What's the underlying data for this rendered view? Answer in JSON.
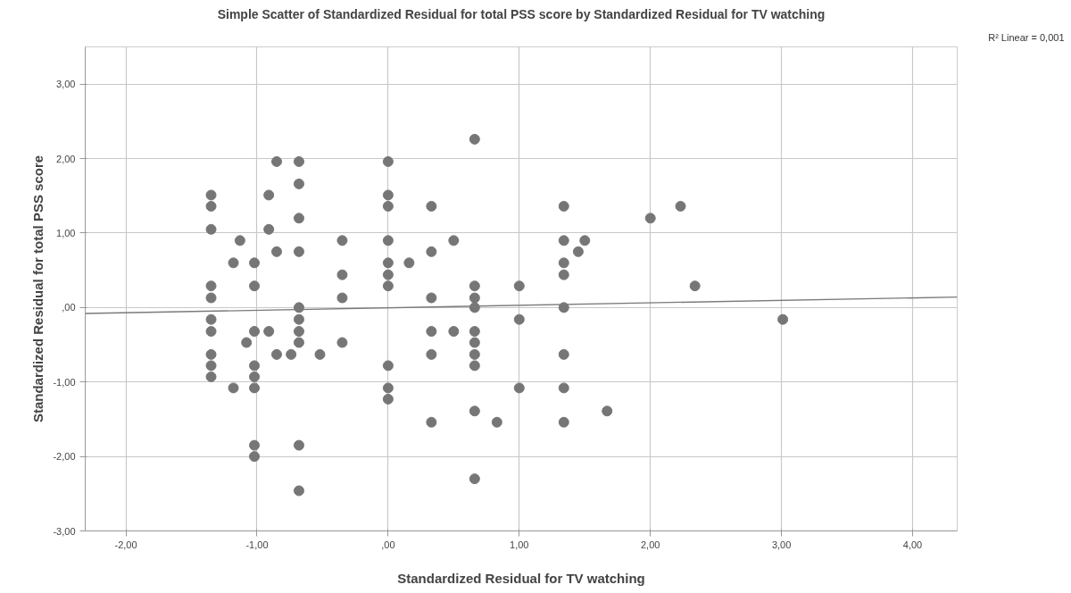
{
  "chart_data": {
    "type": "scatter",
    "title": "Simple Scatter of Standardized Residual for total PSS score by Standardized Residual for TV watching",
    "xlabel": "Standardized Residual for TV watching",
    "ylabel": "Standardized Residual for total PSS score",
    "annotations": [
      "R² Linear = 0,001"
    ],
    "xlim": [
      -2.31,
      4.34
    ],
    "ylim": [
      -3,
      3.5
    ],
    "xticks": [
      {
        "value": -2,
        "label": "-2,00"
      },
      {
        "value": -1,
        "label": "-1,00"
      },
      {
        "value": 0,
        "label": ",00"
      },
      {
        "value": 1,
        "label": "1,00"
      },
      {
        "value": 2,
        "label": "2,00"
      },
      {
        "value": 3,
        "label": "3,00"
      },
      {
        "value": 4,
        "label": "4,00"
      }
    ],
    "yticks": [
      {
        "value": -3,
        "label": "-3,00"
      },
      {
        "value": -2,
        "label": "-2,00"
      },
      {
        "value": -1,
        "label": "-1,00"
      },
      {
        "value": 0,
        "label": ",00"
      },
      {
        "value": 1,
        "label": "1,00"
      },
      {
        "value": 2,
        "label": "2,00"
      },
      {
        "value": 3,
        "label": "3,00"
      }
    ],
    "grid": true,
    "marker": "circle",
    "series": [
      {
        "color": "#767676",
        "x": [
          -1.35,
          -1.35,
          -1.35,
          -1.35,
          -1.35,
          -1.35,
          -1.35,
          -1.35,
          -1.35,
          -1.35,
          -1.18,
          -1.18,
          -1.13,
          -1.08,
          -1.02,
          -1.02,
          -1.02,
          -1.02,
          -1.02,
          -1.02,
          -1.02,
          -1.02,
          -0.91,
          -0.91,
          -0.91,
          -0.85,
          -0.85,
          -0.85,
          -0.74,
          -0.68,
          -0.68,
          -0.68,
          -0.68,
          -0.68,
          -0.68,
          -0.68,
          -0.68,
          -0.68,
          -0.68,
          -0.52,
          -0.35,
          -0.35,
          -0.35,
          -0.35,
          0,
          0,
          0,
          0,
          0,
          0,
          0,
          0,
          0,
          0,
          0.16,
          0.33,
          0.33,
          0.33,
          0.33,
          0.33,
          0.33,
          0.5,
          0.5,
          0.66,
          0.66,
          0.66,
          0.66,
          0.66,
          0.66,
          0.66,
          0.66,
          0.66,
          0.66,
          0.83,
          1.0,
          1.0,
          1.0,
          1.34,
          1.34,
          1.34,
          1.34,
          1.34,
          1.34,
          1.34,
          1.34,
          1.45,
          1.5,
          1.67,
          2.0,
          2.23,
          2.34,
          3.01
        ],
        "values": [
          1.51,
          1.36,
          1.05,
          0.29,
          0.13,
          -0.16,
          -0.32,
          -0.63,
          -0.78,
          -0.93,
          0.6,
          -1.08,
          0.9,
          -0.47,
          0.6,
          0.29,
          -0.32,
          -0.78,
          -0.93,
          -1.08,
          -1.85,
          -2.0,
          1.51,
          1.05,
          -0.32,
          1.96,
          0.75,
          -0.63,
          -0.63,
          1.96,
          1.66,
          1.2,
          0.75,
          0,
          -0.16,
          -0.32,
          -0.47,
          -1.85,
          -2.46,
          -0.63,
          0.9,
          0.44,
          0.13,
          -0.47,
          1.96,
          1.51,
          1.36,
          0.9,
          0.6,
          0.44,
          0.29,
          -0.78,
          -1.08,
          -1.23,
          0.6,
          1.36,
          0.75,
          0.13,
          -0.32,
          -0.63,
          -1.54,
          0.9,
          -0.32,
          2.26,
          0.29,
          0.13,
          0,
          -0.32,
          -0.47,
          -0.63,
          -0.78,
          -1.39,
          -2.3,
          -1.54,
          0.29,
          -0.16,
          -1.08,
          1.36,
          0.9,
          0.6,
          0.44,
          0,
          -0.63,
          -1.08,
          -1.54,
          0.75,
          0.9,
          -1.39,
          1.2,
          1.36,
          0.29,
          -0.16
        ]
      },
      {
        "type": "line",
        "marker": "none",
        "color": "#7a7a7a",
        "x": [
          -2.31,
          4.34
        ],
        "values": [
          -0.08,
          0.14
        ]
      }
    ]
  }
}
